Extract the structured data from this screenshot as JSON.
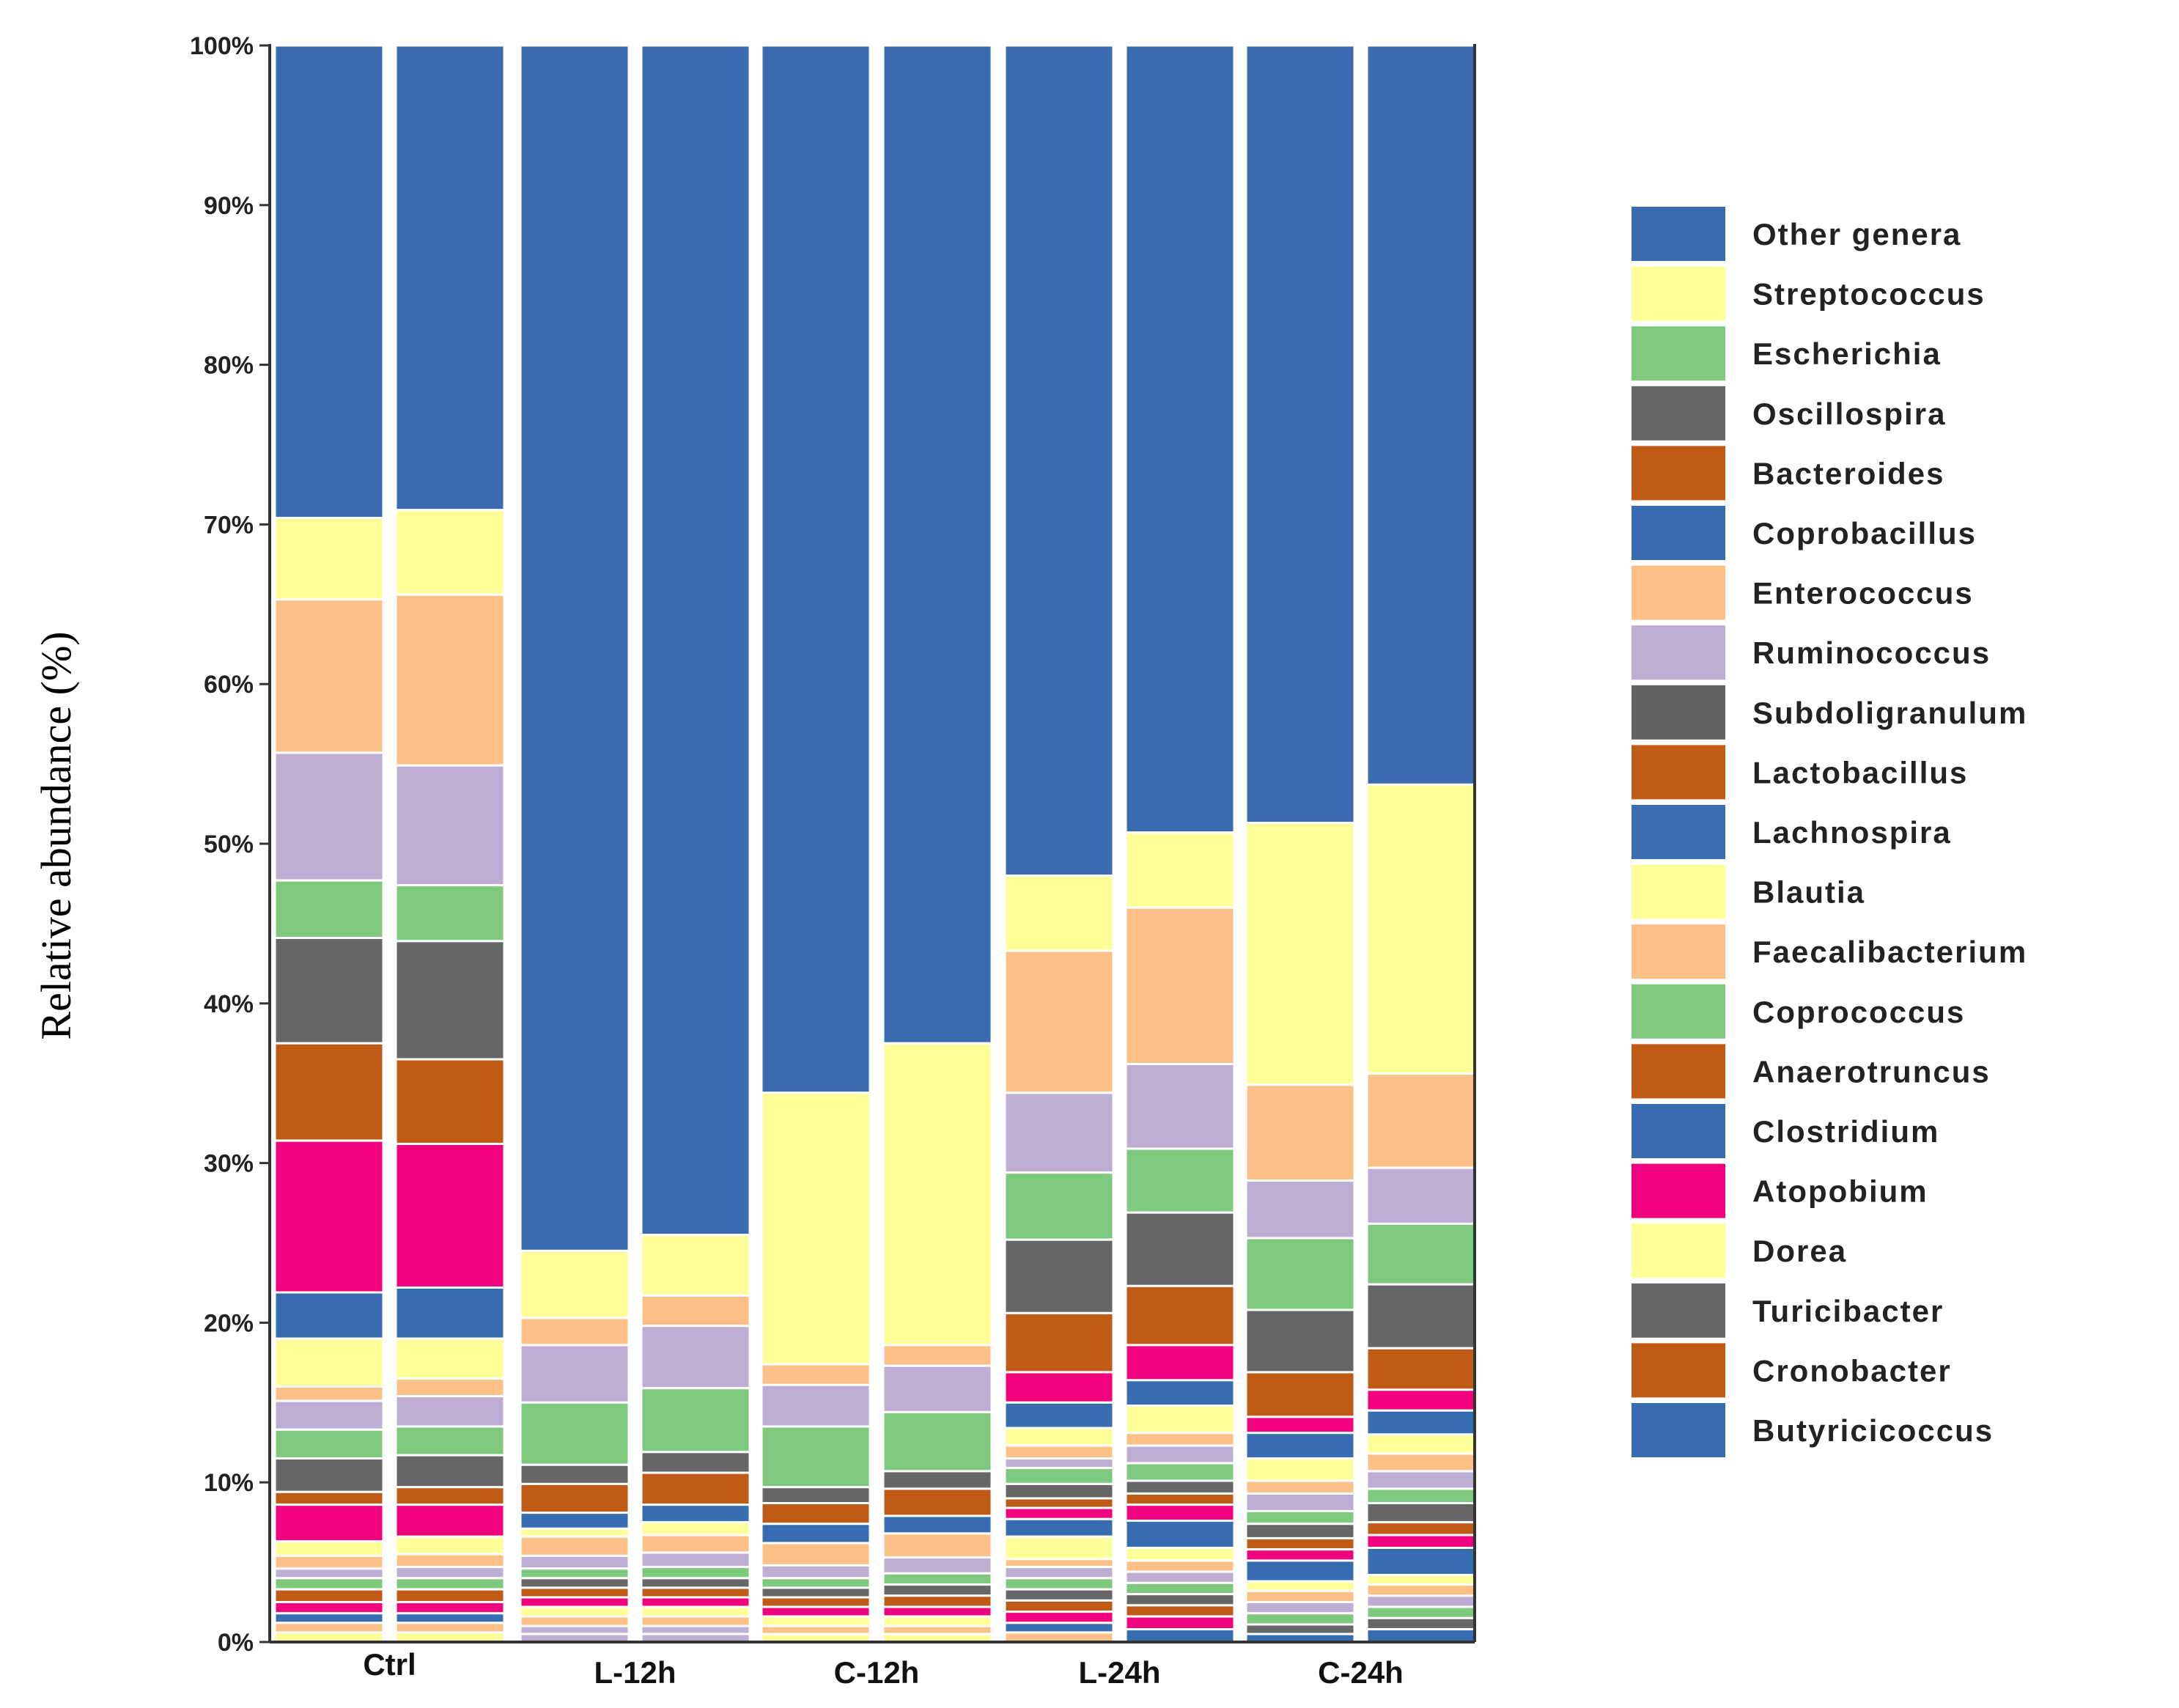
{
  "chart_data": {
    "type": "bar",
    "stacked": true,
    "normalized_percent": true,
    "title": "",
    "xlabel": "",
    "ylabel": "Relative abundance (%)",
    "ylim": [
      0,
      100
    ],
    "yticks": [
      "0%",
      "10%",
      "20%",
      "30%",
      "40%",
      "50%",
      "60%",
      "70%",
      "80%",
      "90%",
      "100%"
    ],
    "groups": [
      "Ctrl",
      "L-12h",
      "C-12h",
      "L-24h",
      "C-24h"
    ],
    "bars_per_group": 2,
    "legend_position": "right",
    "legend": [
      "Other genera",
      "Streptococcus",
      "Escherichia",
      "Oscillospira",
      "Bacteroides",
      "Coprobacillus",
      "Enterococcus",
      "Ruminococcus",
      "Subdoligranulum",
      "Lactobacillus",
      "Lachnospira",
      "Blautia",
      "Faecalibacterium",
      "Coprococcus",
      "Anaerotruncus",
      "Clostridium",
      "Atopobium",
      "Dorea",
      "Turicibacter",
      "Cronobacter",
      "Butyricicoccus"
    ],
    "colors": [
      "#3A6BAE",
      "#FFFF99",
      "#7FC97F",
      "#666666",
      "#BF5B17",
      "#386CB0",
      "#FDC086",
      "#BEAED4",
      "#636363",
      "#C25B17",
      "#3B6EB0",
      "#FFFF99",
      "#FDC086",
      "#7FC97F",
      "#BF5B17",
      "#386CB0",
      "#F0027F",
      "#FFFF99",
      "#666666",
      "#BF5B17",
      "#386CB0"
    ],
    "series_note": "Each bar: upper boundaries of stacked top layers (top-down), then approximate small-layer boundaries in lower region (read from gridlines).",
    "bars": [
      {
        "group": "Ctrl",
        "boundaries": [
          100,
          70.4,
          65.3,
          55.7,
          47.7,
          44.1,
          37.5,
          31.4,
          21.9,
          19.0,
          16.0,
          15.1,
          13.3,
          11.5,
          9.4,
          8.6,
          6.3,
          5.4,
          4.6,
          4.0,
          3.3,
          2.5,
          1.8,
          1.2,
          0.6
        ]
      },
      {
        "group": "Ctrl",
        "boundaries": [
          100,
          70.9,
          65.6,
          54.9,
          47.4,
          43.9,
          36.5,
          31.2,
          22.2,
          19.0,
          16.5,
          15.4,
          13.5,
          11.7,
          9.7,
          8.6,
          6.6,
          5.5,
          4.7,
          4.0,
          3.3,
          2.5,
          1.8,
          1.2,
          0.6
        ]
      },
      {
        "group": "L-12h",
        "boundaries": [
          100,
          24.5,
          20.3,
          18.6,
          15.0,
          11.1,
          9.9,
          8.1,
          7.1,
          6.6,
          5.4,
          4.6,
          4.0,
          3.4,
          2.8,
          2.2,
          1.6,
          1.0,
          0.5
        ]
      },
      {
        "group": "L-12h",
        "boundaries": [
          100,
          25.5,
          21.7,
          19.8,
          15.9,
          11.9,
          10.6,
          8.6,
          7.5,
          6.7,
          5.6,
          4.7,
          4.0,
          3.4,
          2.8,
          2.2,
          1.6,
          1.0,
          0.5
        ]
      },
      {
        "group": "C-12h",
        "boundaries": [
          100,
          34.4,
          17.4,
          16.1,
          13.5,
          9.7,
          8.7,
          7.4,
          6.2,
          4.8,
          4.0,
          3.4,
          2.8,
          2.2,
          1.6,
          1.0,
          0.5
        ]
      },
      {
        "group": "C-12h",
        "boundaries": [
          100,
          37.5,
          18.6,
          17.3,
          14.4,
          10.7,
          9.6,
          7.9,
          6.8,
          5.3,
          4.3,
          3.6,
          2.9,
          2.2,
          1.6,
          1.0,
          0.5
        ]
      },
      {
        "group": "L-24h",
        "boundaries": [
          100,
          48.0,
          43.3,
          34.4,
          29.4,
          25.2,
          20.6,
          16.9,
          15.0,
          13.4,
          12.3,
          11.5,
          10.9,
          9.9,
          9.0,
          8.4,
          7.7,
          6.6,
          5.2,
          4.7,
          4.0,
          3.3,
          2.6,
          1.9,
          1.2,
          0.6
        ]
      },
      {
        "group": "L-24h",
        "boundaries": [
          100,
          50.7,
          46.0,
          36.2,
          30.9,
          26.9,
          22.3,
          18.6,
          16.4,
          14.8,
          13.1,
          12.3,
          11.2,
          10.1,
          9.3,
          8.6,
          7.6,
          5.9,
          5.1,
          4.4,
          3.7,
          3.0,
          2.3,
          1.6,
          0.8
        ]
      },
      {
        "group": "C-24h",
        "boundaries": [
          100,
          51.3,
          34.9,
          28.9,
          25.3,
          20.8,
          16.9,
          14.1,
          13.1,
          11.5,
          10.1,
          9.3,
          8.2,
          7.4,
          6.5,
          5.8,
          5.1,
          3.8,
          3.2,
          2.5,
          1.8,
          1.1,
          0.5
        ]
      },
      {
        "group": "C-24h",
        "boundaries": [
          100,
          53.7,
          35.6,
          29.7,
          26.2,
          22.4,
          18.4,
          15.8,
          14.5,
          13.0,
          11.8,
          10.7,
          9.6,
          8.7,
          7.5,
          6.7,
          5.9,
          4.2,
          3.6,
          2.9,
          2.2,
          1.5,
          0.8
        ]
      }
    ]
  }
}
